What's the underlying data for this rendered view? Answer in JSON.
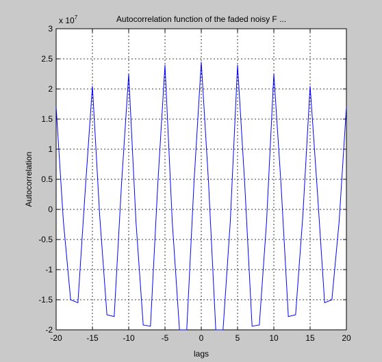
{
  "window": {
    "background": "#c9c9c9"
  },
  "chart_data": {
    "type": "line",
    "title": "Autocorrelation function of the faded noisy F ...",
    "xlabel": "lags",
    "ylabel": "Autocorrelation",
    "exponent_label": "x 10",
    "exponent_power": "7",
    "xlim": [
      -20,
      20
    ],
    "ylim": [
      -2,
      3
    ],
    "grid": true,
    "xticks": [
      -20,
      -15,
      -10,
      -5,
      0,
      5,
      10,
      15,
      20
    ],
    "xtick_labels": [
      "-20",
      "-15",
      "-10",
      "-5",
      "0",
      "5",
      "10",
      "15",
      "20"
    ],
    "yticks": [
      -2,
      -1.5,
      -1,
      -0.5,
      0,
      0.5,
      1,
      1.5,
      2,
      2.5,
      3
    ],
    "ytick_labels": [
      "-2",
      "-1.5",
      "-1",
      "-0.5",
      "0",
      "0.5",
      "1",
      "1.5",
      "2",
      "2.5",
      "3"
    ],
    "line_color": "#0000ff",
    "series": [
      {
        "x": [
          -20,
          -19,
          -18,
          -17,
          -16,
          -15,
          -14,
          -13,
          -12,
          -11,
          -10,
          -9,
          -8,
          -7,
          -6,
          -5,
          -4,
          -3,
          -2,
          -1,
          0,
          1,
          2,
          3,
          4,
          5,
          6,
          7,
          8,
          9,
          10,
          11,
          12,
          13,
          14,
          15,
          16,
          17,
          18,
          19,
          20
        ],
        "y": [
          1.7,
          -0.2,
          -1.5,
          -1.55,
          0.3,
          2.05,
          -0.1,
          -1.75,
          -1.78,
          0.4,
          2.25,
          -0.2,
          -1.92,
          -1.94,
          0.4,
          2.4,
          -0.2,
          -2.0,
          -2.0,
          0.45,
          2.45,
          0.45,
          -2.0,
          -2.0,
          -0.2,
          2.4,
          0.4,
          -1.94,
          -1.92,
          -0.2,
          2.25,
          0.4,
          -1.78,
          -1.75,
          -0.1,
          2.05,
          0.3,
          -1.55,
          -1.5,
          -0.2,
          1.7
        ]
      }
    ]
  }
}
